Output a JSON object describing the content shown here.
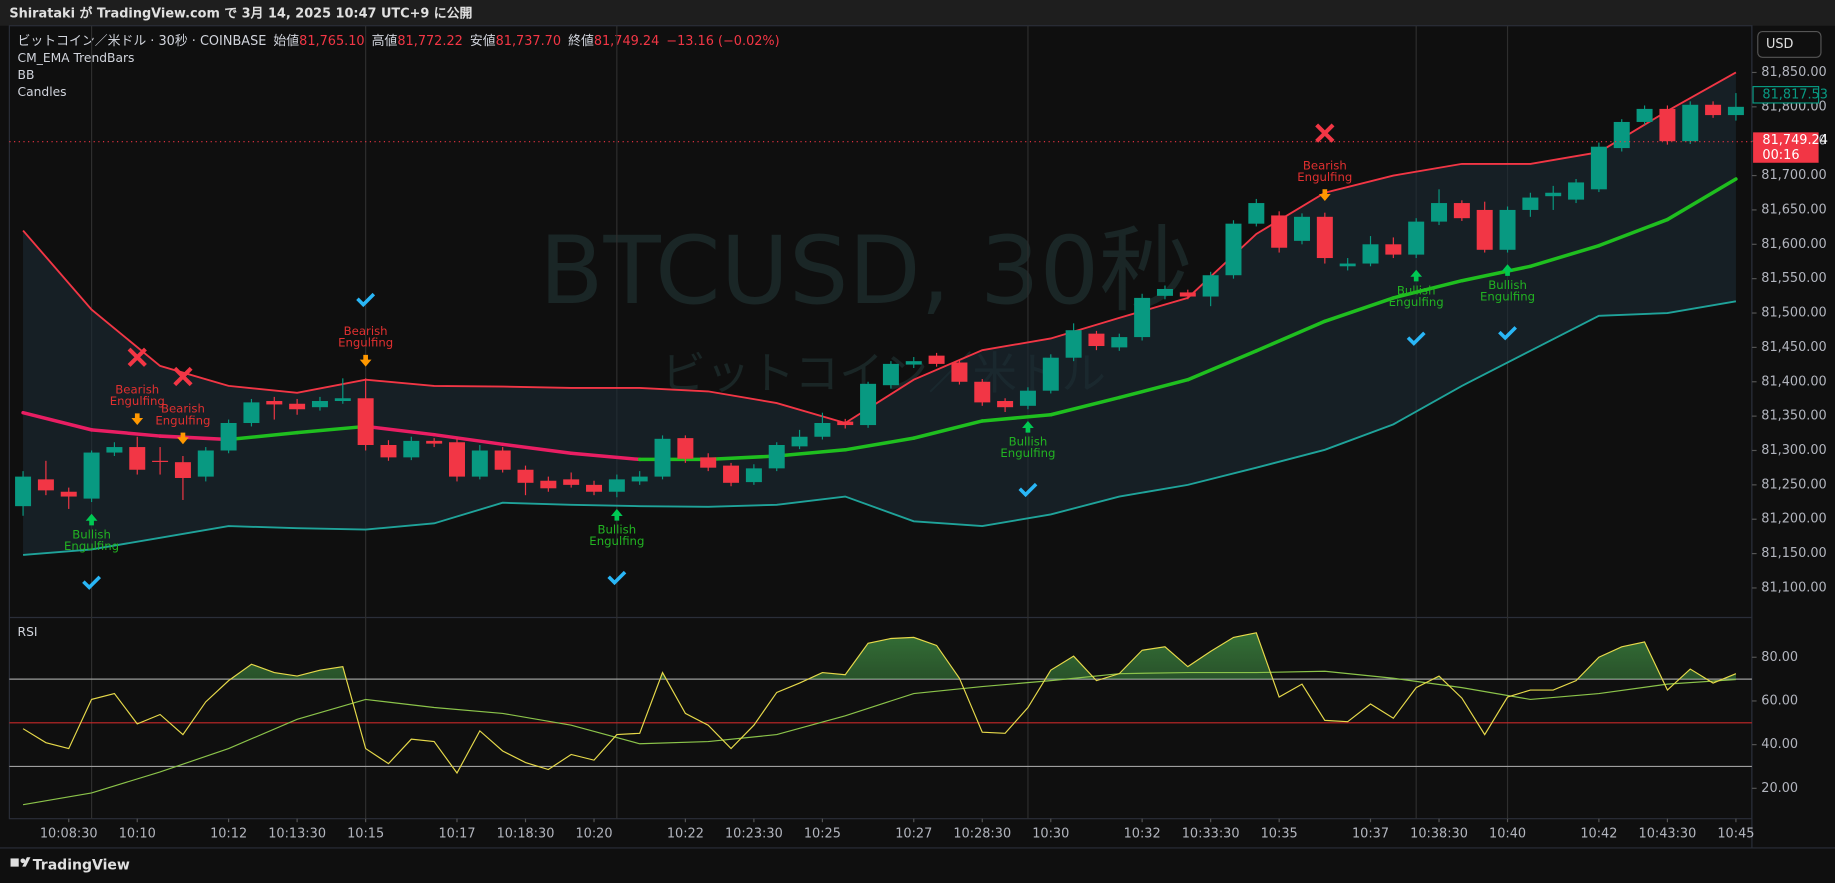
{
  "header": {
    "published": "Shirataki が TradingView.com で 3月 14, 2025 10:47 UTC+9 に公開"
  },
  "footer": {
    "brand": "TradingView"
  },
  "chart_data": {
    "type": "candlestick",
    "symbol": "ビットコイン／米ドル · 30秒 · COINBASE",
    "ohlc_header": [
      {
        "label": "始値",
        "value": "81,765.10"
      },
      {
        "label": "高値",
        "value": "81,772.22"
      },
      {
        "label": "安値",
        "value": "81,737.70"
      },
      {
        "label": "終値",
        "value": "81,749.24"
      }
    ],
    "change": "−13.16 (−0.02%)",
    "indicators": [
      "CM_EMA TrendBars",
      "BB",
      "Candles"
    ],
    "watermark": [
      "BTCUSD, 30秒",
      "ビットコイン／米ドル"
    ],
    "currency": "USD",
    "up_color": "#089981",
    "down_color": "#f23645",
    "open": [
      81219,
      81258,
      81240,
      81230,
      81297,
      81305,
      81285,
      81283,
      81262,
      81300,
      81340,
      81372,
      81368,
      81363,
      81372,
      81376,
      81308,
      81290,
      81314,
      81312,
      81262,
      81300,
      81272,
      81256,
      81258,
      81250,
      81240,
      81255,
      81262,
      81318,
      81290,
      81278,
      81254,
      81274,
      81306,
      81320,
      81342,
      81337,
      81395,
      81425,
      81438,
      81428,
      81400,
      81372,
      81365,
      81387,
      81435,
      81470,
      81450,
      81465,
      81525,
      81530,
      81524,
      81555,
      81630,
      81642,
      81605,
      81640,
      81568,
      81572,
      81600,
      81585,
      81633,
      81660,
      81650,
      81592,
      81650,
      81670,
      81665,
      81680,
      81740,
      81778,
      81797,
      81750,
      81803,
      81788
    ],
    "high": [
      81270,
      81285,
      81246,
      81300,
      81312,
      81320,
      81305,
      81292,
      81305,
      81345,
      81375,
      81378,
      81375,
      81378,
      81405,
      81405,
      81315,
      81320,
      81318,
      81318,
      81308,
      81305,
      81278,
      81262,
      81268,
      81256,
      81265,
      81270,
      81322,
      81322,
      81296,
      81282,
      81280,
      81312,
      81330,
      81355,
      81346,
      81400,
      81430,
      81436,
      81442,
      81432,
      81404,
      81376,
      81392,
      81440,
      81485,
      81474,
      81470,
      81528,
      81540,
      81534,
      81560,
      81635,
      81666,
      81648,
      81645,
      81646,
      81580,
      81612,
      81610,
      81638,
      81680,
      81664,
      81662,
      81655,
      81675,
      81685,
      81695,
      81748,
      81782,
      81802,
      81802,
      81808,
      81808,
      81820
    ],
    "low": [
      81205,
      81235,
      81215,
      81225,
      81292,
      81265,
      81265,
      81228,
      81255,
      81296,
      81335,
      81345,
      81352,
      81358,
      81368,
      81300,
      81285,
      81286,
      81305,
      81255,
      81258,
      81268,
      81235,
      81240,
      81246,
      81235,
      81232,
      81250,
      81258,
      81282,
      81270,
      81248,
      81250,
      81270,
      81302,
      81316,
      81332,
      81333,
      81390,
      81420,
      81422,
      81396,
      81365,
      81356,
      81360,
      81383,
      81430,
      81446,
      81445,
      81460,
      81520,
      81520,
      81510,
      81550,
      81626,
      81588,
      81600,
      81572,
      81562,
      81568,
      81580,
      81580,
      81628,
      81634,
      81588,
      81588,
      81640,
      81650,
      81660,
      81676,
      81735,
      81774,
      81745,
      81746,
      81784,
      81780
    ],
    "close": [
      81262,
      81242,
      81233,
      81297,
      81305,
      81272,
      81284,
      81260,
      81300,
      81340,
      81370,
      81367,
      81360,
      81372,
      81376,
      81308,
      81290,
      81314,
      81310,
      81262,
      81300,
      81272,
      81253,
      81245,
      81250,
      81240,
      81258,
      81262,
      81317,
      81288,
      81275,
      81253,
      81274,
      81308,
      81320,
      81340,
      81337,
      81397,
      81426,
      81430,
      81426,
      81400,
      81370,
      81363,
      81387,
      81435,
      81475,
      81452,
      81465,
      81522,
      81535,
      81524,
      81555,
      81630,
      81660,
      81595,
      81640,
      81580,
      81572,
      81600,
      81585,
      81633,
      81660,
      81638,
      81592,
      81650,
      81668,
      81675,
      81690,
      81742,
      81778,
      81797,
      81750,
      81803,
      81788,
      81800
    ],
    "xlim": [
      -0.6,
      75.7
    ],
    "xticks": [
      {
        "value": 2,
        "label": "10:08:30"
      },
      {
        "value": 5,
        "label": "10:10"
      },
      {
        "value": 9,
        "label": "10:12"
      },
      {
        "value": 12,
        "label": "10:13:30"
      },
      {
        "value": 15,
        "label": "10:15"
      },
      {
        "value": 19,
        "label": "10:17"
      },
      {
        "value": 22,
        "label": "10:18:30"
      },
      {
        "value": 25,
        "label": "10:20"
      },
      {
        "value": 29,
        "label": "10:22"
      },
      {
        "value": 32,
        "label": "10:23:30"
      },
      {
        "value": 35,
        "label": "10:25"
      },
      {
        "value": 39,
        "label": "10:27"
      },
      {
        "value": 42,
        "label": "10:28:30"
      },
      {
        "value": 45,
        "label": "10:30"
      },
      {
        "value": 49,
        "label": "10:32"
      },
      {
        "value": 52,
        "label": "10:33:30"
      },
      {
        "value": 55,
        "label": "10:35"
      },
      {
        "value": 59,
        "label": "10:37"
      },
      {
        "value": 62,
        "label": "10:38:30"
      },
      {
        "value": 65,
        "label": "10:40"
      },
      {
        "value": 69,
        "label": "10:42"
      },
      {
        "value": 72,
        "label": "10:43:30"
      },
      {
        "value": 75,
        "label": "10:45"
      }
    ],
    "ylim": [
      81057,
      81918
    ],
    "yticks": [
      {
        "value": 81100,
        "label": "81,100.00"
      },
      {
        "value": 81150,
        "label": "81,150.00"
      },
      {
        "value": 81200,
        "label": "81,200.00"
      },
      {
        "value": 81250,
        "label": "81,250.00"
      },
      {
        "value": 81300,
        "label": "81,300.00"
      },
      {
        "value": 81350,
        "label": "81,350.00"
      },
      {
        "value": 81400,
        "label": "81,400.00"
      },
      {
        "value": 81450,
        "label": "81,450.00"
      },
      {
        "value": 81500,
        "label": "81,500.00"
      },
      {
        "value": 81550,
        "label": "81,550.00"
      },
      {
        "value": 81600,
        "label": "81,600.00"
      },
      {
        "value": 81650,
        "label": "81,650.00"
      },
      {
        "value": 81700,
        "label": "81,700.00"
      },
      {
        "value": 81750,
        "label": "81,750.00"
      },
      {
        "value": 81800,
        "label": "81,800.00"
      },
      {
        "value": 81850,
        "label": "81,850.00"
      }
    ],
    "grid": false,
    "bands": {
      "x": [
        0,
        3,
        6,
        9,
        12,
        15,
        18,
        21,
        24,
        27,
        30,
        33,
        36,
        39,
        42,
        45,
        48,
        51,
        54,
        57,
        60,
        63,
        66,
        69,
        72,
        75
      ],
      "fill": "#1a2a33",
      "upper": {
        "color": "#f23645",
        "values": [
          81620,
          81505,
          81423,
          81394,
          81384,
          81403,
          81394,
          81393,
          81391,
          81391,
          81386,
          81369,
          81340,
          81403,
          81446,
          81463,
          81493,
          81522,
          81615,
          81675,
          81700,
          81717,
          81717,
          81734,
          81794,
          81850
        ]
      },
      "basis": {
        "rising_color": "#1fbf1f",
        "falling_color": "#e91e63",
        "values": [
          81355,
          81330,
          81321,
          81316,
          81326,
          81335,
          81323,
          81309,
          81296,
          81287,
          81287,
          81292,
          81301,
          81318,
          81343,
          81352,
          81377,
          81403,
          81445,
          81488,
          81522,
          81547,
          81568,
          81598,
          81636,
          81695
        ]
      },
      "lower": {
        "color": "#1fa39a",
        "values": [
          81148,
          81156,
          81173,
          81190,
          81187,
          81185,
          81194,
          81224,
          81221,
          81219,
          81218,
          81221,
          81233,
          81197,
          81190,
          81207,
          81233,
          81250,
          81275,
          81301,
          81338,
          81394,
          81445,
          81496,
          81500,
          81517
        ]
      }
    },
    "last_price": {
      "value": 81749.24,
      "label": "81,749.24",
      "countdown": "00:16",
      "color": "#f23645"
    },
    "price_label": {
      "value": 81817.53,
      "label": "81,817.53",
      "color": "#089981"
    },
    "signals": [
      {
        "index": 3,
        "kind": "bullish",
        "label": [
          "Bullish",
          "Engulfing"
        ],
        "marker": "check"
      },
      {
        "index": 5,
        "kind": "bearish",
        "label": [
          "Bearish",
          "Engulfing"
        ],
        "marker": "cross"
      },
      {
        "index": 7,
        "kind": "bearish",
        "label": [
          "Bearish",
          "Engulfing"
        ],
        "marker": "cross"
      },
      {
        "index": 15,
        "kind": "bearish",
        "label": [
          "Bearish",
          "Engulfing"
        ],
        "marker": "check"
      },
      {
        "index": 26,
        "kind": "bullish",
        "label": [
          "Bullish",
          "Engulfing"
        ],
        "marker": "check"
      },
      {
        "index": 44,
        "kind": "bullish",
        "label": [
          "Bullish",
          "Engulfing"
        ],
        "marker": "check"
      },
      {
        "index": 57,
        "kind": "bearish",
        "label": [
          "Bearish",
          "Engulfing"
        ],
        "marker": "cross"
      },
      {
        "index": 61,
        "kind": "bullish",
        "label": [
          "Bullish",
          "Engulfing"
        ],
        "marker": "check"
      },
      {
        "index": 65,
        "kind": "bullish",
        "label": [
          "Bullish",
          "Engulfing"
        ],
        "marker": "check"
      }
    ],
    "signal_colors": {
      "bullish": "#22b322",
      "bearish": "#e03030",
      "bullish_arrow": "#00c853",
      "bearish_arrow": "#ff9800",
      "check": "#29b6f6",
      "cross": "#f23645"
    },
    "rsi": {
      "title": "RSI",
      "color": "#e6d94a",
      "overbought_fill": "#4caf50",
      "values": [
        47.3,
        40.9,
        38.2,
        60.7,
        63.4,
        49.5,
        53.8,
        44.6,
        59.6,
        69.3,
        76.8,
        73.0,
        71.4,
        74.1,
        75.7,
        38.2,
        31.3,
        42.5,
        41.4,
        27.0,
        46.3,
        37.1,
        31.8,
        28.6,
        35.5,
        32.9,
        44.6,
        45.2,
        73.0,
        54.3,
        48.9,
        38.2,
        48.9,
        63.9,
        68.2,
        73.0,
        72.0,
        86.4,
        88.6,
        89.1,
        85.4,
        70.4,
        45.7,
        45.2,
        57.0,
        74.1,
        80.5,
        69.3,
        72.5,
        83.2,
        84.8,
        75.7,
        82.7,
        89.1,
        91.2,
        61.8,
        67.7,
        51.1,
        50.5,
        58.6,
        52.1,
        66.1,
        71.4,
        61.3,
        44.6,
        61.8,
        65.0,
        65.0,
        69.3,
        80.0,
        84.8,
        87.0,
        65.0,
        74.6,
        68.2,
        72.5
      ],
      "ma": {
        "color": "#8bc34a",
        "values": [
          12.5,
          17.9,
          27.5,
          38.2,
          51.6,
          60.7,
          57.0,
          54.3,
          48.9,
          40.4,
          41.4,
          44.6,
          53.2,
          63.4,
          66.6,
          69.3,
          72.5,
          73.0,
          73.0,
          73.6,
          70.4,
          66.1,
          60.7,
          63.4,
          67.7,
          69.8
        ]
      },
      "ylim": [
        6.1,
        98.2
      ],
      "yticks": [
        {
          "value": 20,
          "label": "20.00"
        },
        {
          "value": 40,
          "label": "40.00"
        },
        {
          "value": 60,
          "label": "60.00"
        },
        {
          "value": 80,
          "label": "80.00"
        }
      ],
      "levels": [
        {
          "value": 30,
          "color": "#9e9e9e"
        },
        {
          "value": 50,
          "color": "#c62828"
        },
        {
          "value": 70,
          "color": "#9e9e9e"
        }
      ]
    }
  }
}
